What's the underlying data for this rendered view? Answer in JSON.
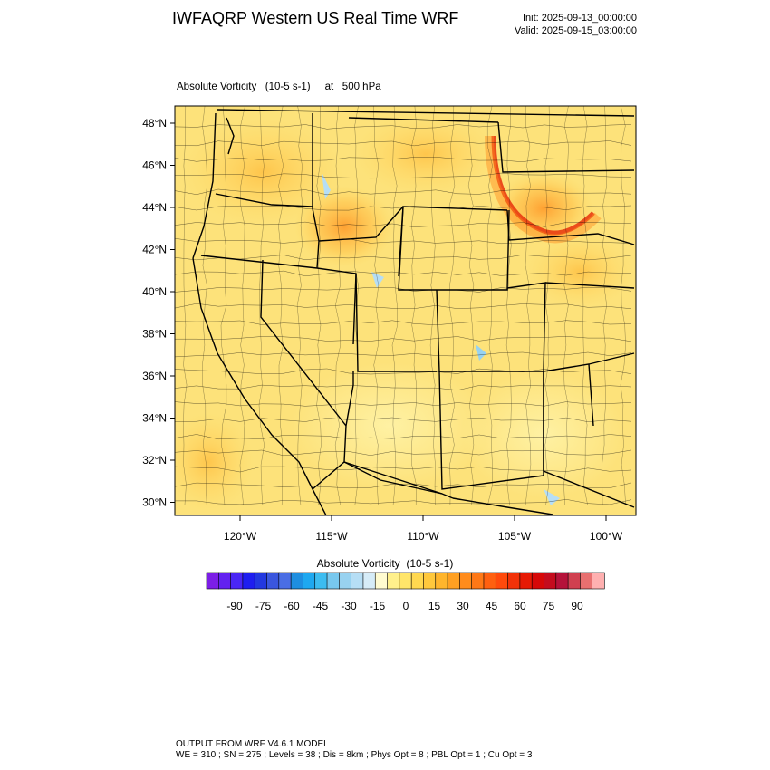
{
  "header": {
    "title": "IWFAQRP Western US Real Time WRF",
    "init": "Init: 2025-09-13_00:00:00",
    "valid": "Valid: 2025-09-15_03:00:00",
    "subtitle": "Absolute Vorticity   (10-5 s-1)     at   500 hPa"
  },
  "map": {
    "lat_labels": [
      "48°N",
      "46°N",
      "44°N",
      "42°N",
      "40°N",
      "38°N",
      "36°N",
      "34°N",
      "32°N",
      "30°N"
    ],
    "lon_labels": [
      "120°W",
      "115°W",
      "110°W",
      "105°W",
      "100°W"
    ],
    "background_color": "#fde27a"
  },
  "colorbar": {
    "title": "Absolute Vorticity  (10-5 s-1)",
    "tick_labels": [
      "-90",
      "-75",
      "-60",
      "-45",
      "-30",
      "-15",
      "0",
      "15",
      "30",
      "45",
      "60",
      "75",
      "90"
    ],
    "colors": [
      "#7c1ee6",
      "#6322f0",
      "#4a26f5",
      "#1e1ef0",
      "#2238e0",
      "#3a56de",
      "#4a6ee4",
      "#1e8ee0",
      "#1ea8f0",
      "#3cbcf0",
      "#78c8ee",
      "#98d2f0",
      "#b6def5",
      "#d6ecf8",
      "#fffbd0",
      "#fff08c",
      "#ffe56a",
      "#ffd84f",
      "#ffc83c",
      "#ffb52c",
      "#ffa022",
      "#ff8c1c",
      "#ff7816",
      "#ff6010",
      "#ff4a0c",
      "#f23208",
      "#e61a04",
      "#d60808",
      "#c40c1e",
      "#b5123a",
      "#d04050",
      "#e87070",
      "#ffb0b0"
    ]
  },
  "footer": {
    "line1": "OUTPUT FROM WRF V4.6.1 MODEL",
    "line2": "WE = 310 ; SN = 275 ; Levels = 38 ; Dis = 8km ; Phys Opt = 8 ; PBL Opt = 1 ; Cu Opt = 3"
  }
}
